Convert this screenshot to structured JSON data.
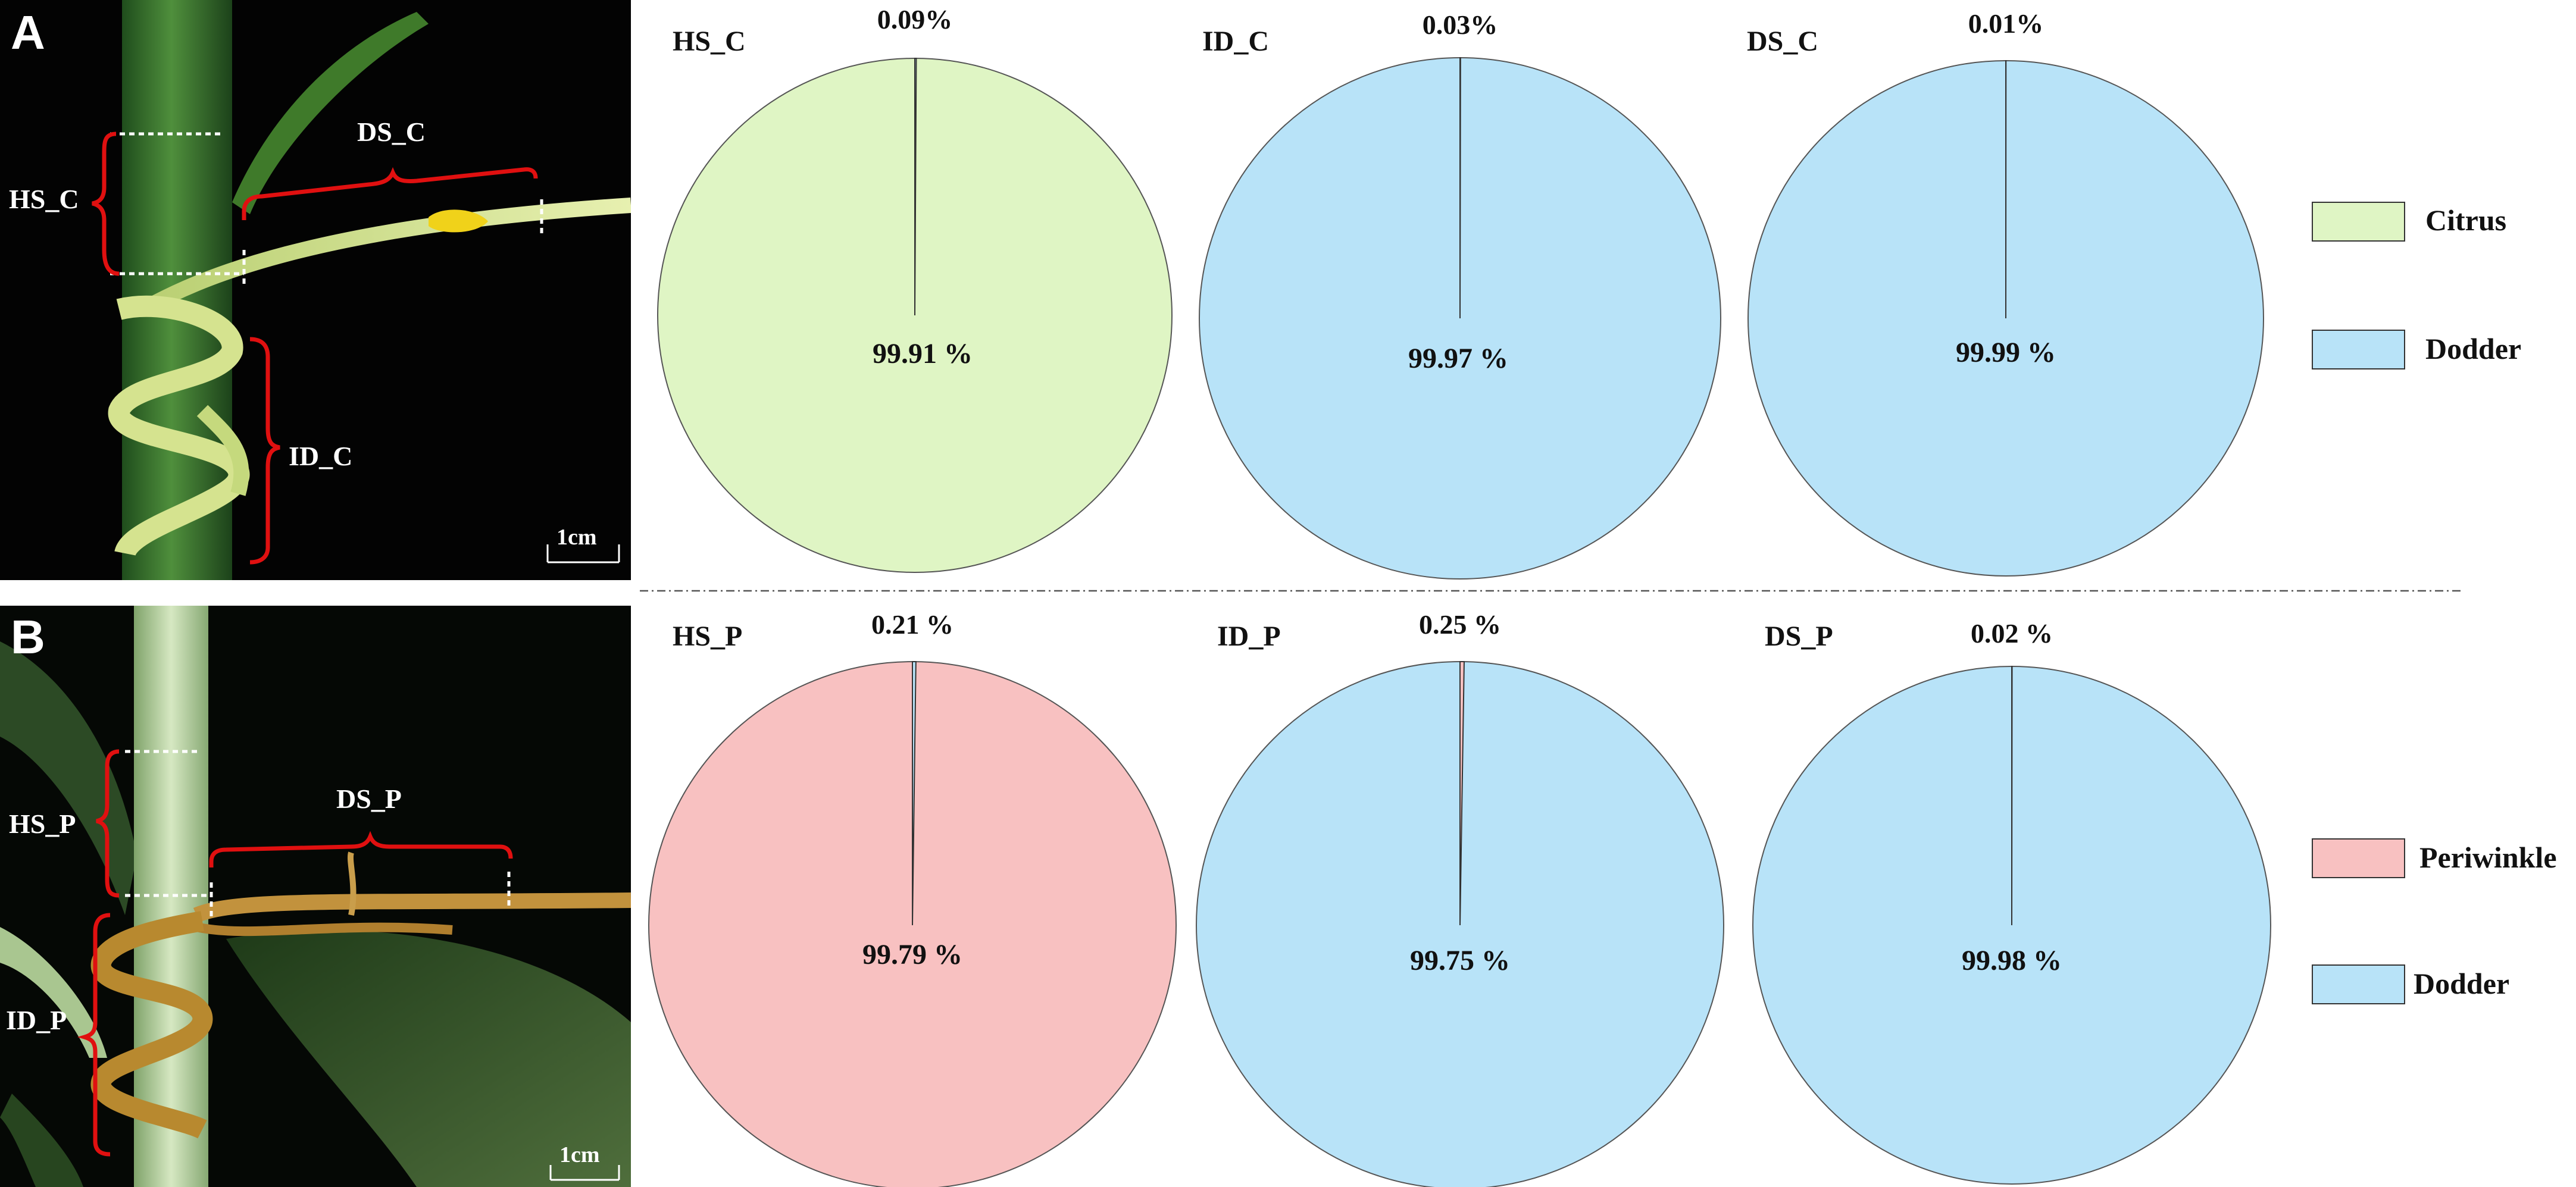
{
  "figure": {
    "panels": [
      {
        "id": "A",
        "letter": "A",
        "photo_labels": {
          "healthy_section": "HS_C",
          "dodder_section": "DS_C",
          "interface_section": "ID_C"
        },
        "scale_bar": "1cm",
        "legend": [
          {
            "label": "Citrus",
            "color": "#dff5c4"
          },
          {
            "label": "Dodder",
            "color": "#b8e3f8"
          }
        ]
      },
      {
        "id": "B",
        "letter": "B",
        "photo_labels": {
          "healthy_section": "HS_P",
          "dodder_section": "DS_P",
          "interface_section": "ID_P"
        },
        "scale_bar": "1cm",
        "legend": [
          {
            "label": "Periwinkle",
            "color": "#f8c1c1"
          },
          {
            "label": "Dodder",
            "color": "#b8e3f8"
          }
        ]
      }
    ]
  },
  "chart_data": [
    {
      "type": "pie",
      "title": "HS_C",
      "series": [
        {
          "values": [
            99.91,
            0.09
          ]
        }
      ],
      "categories": [
        "Citrus",
        "Dodder"
      ],
      "labels": [
        "99.91 %",
        "0.09%"
      ],
      "colors": [
        "#dff5c4",
        "#b8e3f8"
      ]
    },
    {
      "type": "pie",
      "title": "ID_C",
      "series": [
        {
          "values": [
            99.97,
            0.03
          ]
        }
      ],
      "categories": [
        "Dodder",
        "Citrus"
      ],
      "labels": [
        "99.97 %",
        "0.03%"
      ],
      "colors": [
        "#b8e3f8",
        "#dff5c4"
      ]
    },
    {
      "type": "pie",
      "title": "DS_C",
      "series": [
        {
          "values": [
            99.99,
            0.01
          ]
        }
      ],
      "categories": [
        "Dodder",
        "Citrus"
      ],
      "labels": [
        "99.99 %",
        "0.01%"
      ],
      "colors": [
        "#b8e3f8",
        "#dff5c4"
      ]
    },
    {
      "type": "pie",
      "title": "HS_P",
      "series": [
        {
          "values": [
            99.79,
            0.21
          ]
        }
      ],
      "categories": [
        "Periwinkle",
        "Dodder"
      ],
      "labels": [
        "99.79 %",
        "0.21 %"
      ],
      "colors": [
        "#f8c1c1",
        "#b8e3f8"
      ]
    },
    {
      "type": "pie",
      "title": "ID_P",
      "series": [
        {
          "values": [
            99.75,
            0.25
          ]
        }
      ],
      "categories": [
        "Dodder",
        "Periwinkle"
      ],
      "labels": [
        "99.75 %",
        "0.25 %"
      ],
      "colors": [
        "#b8e3f8",
        "#f8c1c1"
      ]
    },
    {
      "type": "pie",
      "title": "DS_P",
      "series": [
        {
          "values": [
            99.98,
            0.02
          ]
        }
      ],
      "categories": [
        "Dodder",
        "Periwinkle"
      ],
      "labels": [
        "99.98 %",
        "0.02 %"
      ],
      "colors": [
        "#b8e3f8",
        "#f8c1c1"
      ]
    }
  ]
}
